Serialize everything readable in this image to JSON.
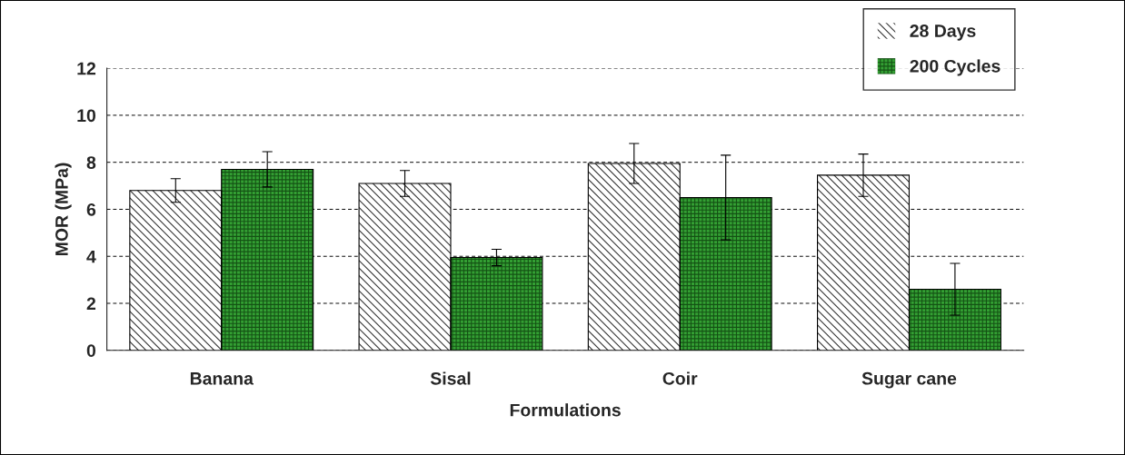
{
  "chart_data": {
    "type": "bar",
    "xlabel": "Formulations",
    "ylabel": "MOR (MPa)",
    "categories": [
      "Banana",
      "Sisal",
      "Coir",
      "Sugar cane"
    ],
    "series": [
      {
        "name": "28 Days",
        "color": "#ffffff",
        "values": [
          6.8,
          7.1,
          7.95,
          7.45
        ],
        "errors": [
          0.5,
          0.55,
          0.85,
          0.9
        ]
      },
      {
        "name": "200 Cycles",
        "color": "#33a033",
        "values": [
          7.7,
          3.95,
          6.5,
          2.6
        ],
        "errors": [
          0.75,
          0.35,
          1.8,
          1.1
        ]
      }
    ],
    "ylim": [
      0,
      12
    ],
    "yticks": [
      0,
      2,
      4,
      6,
      8,
      10,
      12
    ],
    "grid": "y",
    "legend": "top right"
  }
}
